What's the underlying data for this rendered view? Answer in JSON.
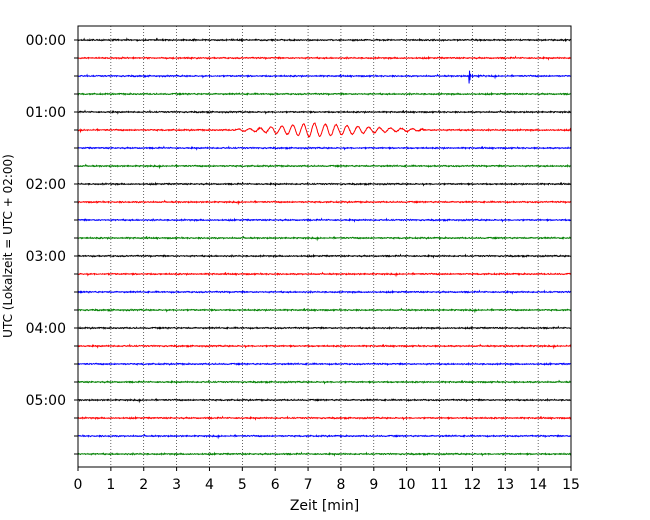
{
  "chart_data": {
    "type": "line",
    "title": "",
    "xlabel": "Zeit  [min]",
    "ylabel": "UTC (Lokalzeit = UTC + 02:00)",
    "xlim": [
      0,
      15
    ],
    "x_ticks": [
      "0",
      "1",
      "2",
      "3",
      "4",
      "5",
      "6",
      "7",
      "8",
      "9",
      "10",
      "11",
      "12",
      "13",
      "14",
      "15"
    ],
    "y_ticks": [
      "00:00",
      "01:00",
      "02:00",
      "03:00",
      "04:00",
      "05:00"
    ],
    "grid": "vertical dotted lines at each minute",
    "colors": [
      "#000000",
      "#ff0000",
      "#0000ff",
      "#008000"
    ],
    "traces": [
      {
        "start": "00:00",
        "color": "#000000"
      },
      {
        "start": "00:15",
        "color": "#ff0000"
      },
      {
        "start": "00:30",
        "color": "#0000ff",
        "event": {
          "type": "spike",
          "x_min": 11.9
        }
      },
      {
        "start": "00:45",
        "color": "#008000"
      },
      {
        "start": "01:00",
        "color": "#000000"
      },
      {
        "start": "01:15",
        "color": "#ff0000",
        "event": {
          "type": "earthquake",
          "x_from_min": 4.8,
          "x_peak_min": 7.1,
          "x_to_min": 10.5
        }
      },
      {
        "start": "01:30",
        "color": "#0000ff"
      },
      {
        "start": "01:45",
        "color": "#008000"
      },
      {
        "start": "02:00",
        "color": "#000000"
      },
      {
        "start": "02:15",
        "color": "#ff0000"
      },
      {
        "start": "02:30",
        "color": "#0000ff"
      },
      {
        "start": "02:45",
        "color": "#008000"
      },
      {
        "start": "03:00",
        "color": "#000000"
      },
      {
        "start": "03:15",
        "color": "#ff0000"
      },
      {
        "start": "03:30",
        "color": "#0000ff"
      },
      {
        "start": "03:45",
        "color": "#008000"
      },
      {
        "start": "04:00",
        "color": "#000000"
      },
      {
        "start": "04:15",
        "color": "#ff0000"
      },
      {
        "start": "04:30",
        "color": "#0000ff"
      },
      {
        "start": "04:45",
        "color": "#008000"
      },
      {
        "start": "05:00",
        "color": "#000000"
      },
      {
        "start": "05:15",
        "color": "#ff0000"
      },
      {
        "start": "05:30",
        "color": "#0000ff"
      },
      {
        "start": "05:45",
        "color": "#008000"
      }
    ]
  }
}
